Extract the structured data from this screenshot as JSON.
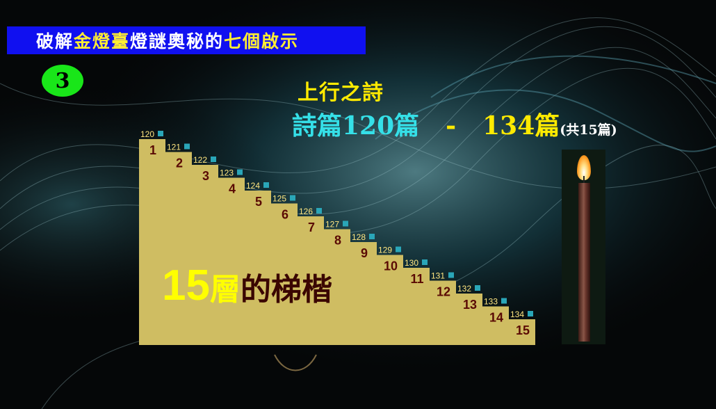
{
  "slide": {
    "title_segments": [
      {
        "text": "破解",
        "color": "#ffffff"
      },
      {
        "text": "金燈臺",
        "color": "#ffee33"
      },
      {
        "text": "燈謎奧秘的",
        "color": "#ffffff"
      },
      {
        "text": "七個啟示",
        "color": "#ffee33"
      }
    ],
    "number_badge": "3",
    "heading_line1": "上行之詩",
    "heading_line2": {
      "part1": "詩篇120篇",
      "dash": "-",
      "part2": "134篇",
      "note": "(共15篇)"
    },
    "staircase_label": {
      "number": "15",
      "ceng": "層",
      "rest": "的梯楷"
    },
    "steps": [
      {
        "step": "1",
        "psalm": "120"
      },
      {
        "step": "2",
        "psalm": "121"
      },
      {
        "step": "3",
        "psalm": "122"
      },
      {
        "step": "4",
        "psalm": "123"
      },
      {
        "step": "5",
        "psalm": "124"
      },
      {
        "step": "6",
        "psalm": "125"
      },
      {
        "step": "7",
        "psalm": "126"
      },
      {
        "step": "8",
        "psalm": "127"
      },
      {
        "step": "9",
        "psalm": "128"
      },
      {
        "step": "10",
        "psalm": "129"
      },
      {
        "step": "11",
        "psalm": "130"
      },
      {
        "step": "12",
        "psalm": "131"
      },
      {
        "step": "13",
        "psalm": "132"
      },
      {
        "step": "14",
        "psalm": "133"
      },
      {
        "step": "15",
        "psalm": "134"
      }
    ],
    "colors": {
      "title_bar": "#1010f0",
      "badge": "#19e619",
      "staircase": "#cfbd62",
      "heading_gold": "#ffea00",
      "heading_cyan": "#35e0e8"
    }
  }
}
